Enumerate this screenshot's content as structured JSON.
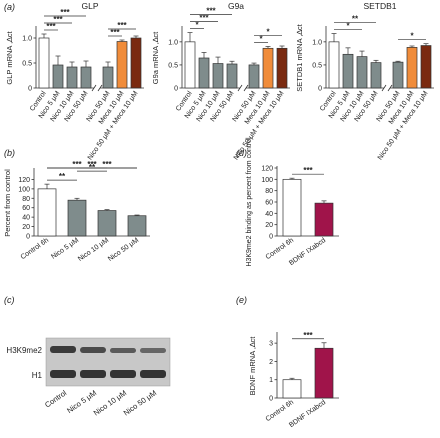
{
  "panels": {
    "a": {
      "letter": "(a)",
      "charts": [
        {
          "type": "bar",
          "title": "GLP",
          "ylabel": "GLP mRNA ,∆ct",
          "ylim": [
            0,
            1.2
          ],
          "yticks": [
            "0",
            "0.5",
            "1.0"
          ],
          "categories": [
            "Control",
            "Nico 5 μM",
            "Nico 10 μM",
            "Nico 50 μM",
            "Nico 50 μM",
            "Meca 10 μM",
            "Nico 50 μM + Meca 10 μM"
          ],
          "values": [
            1.0,
            0.46,
            0.42,
            0.42,
            0.42,
            0.93,
            1.0
          ],
          "errors": [
            0.08,
            0.18,
            0.1,
            0.12,
            0.1,
            0.03,
            0.04
          ],
          "fills": [
            "#ffffff",
            "#7f8c8c",
            "#7f8c8c",
            "#7f8c8c",
            "#7f8c8c",
            "#f08c3a",
            "#7a2a10"
          ],
          "break_after": 3,
          "sig": [
            {
              "from": 0,
              "to": 1,
              "label": "***"
            },
            {
              "from": 0,
              "to": 2,
              "label": "***"
            },
            {
              "from": 0,
              "to": 3,
              "label": "***"
            },
            {
              "from": 4,
              "to": 5,
              "label": "***"
            },
            {
              "from": 4,
              "to": 6,
              "label": "***"
            }
          ]
        },
        {
          "type": "bar",
          "title": "G9a",
          "ylabel": "G9a mRNA ,∆ct",
          "ylim": [
            0,
            1.3
          ],
          "yticks": [
            "0",
            "0.5",
            "1.0"
          ],
          "categories": [
            "Control",
            "Nico 5 μM",
            "Nico 10 μM",
            "Nico 50 μM",
            "Nico 50 μM",
            "Meca 10 μM",
            "Nico 50 μM + Meca 10 μM"
          ],
          "values": [
            1.0,
            0.65,
            0.53,
            0.52,
            0.5,
            0.86,
            0.86
          ],
          "errors": [
            0.2,
            0.12,
            0.14,
            0.06,
            0.04,
            0.04,
            0.05
          ],
          "fills": [
            "#ffffff",
            "#7f8c8c",
            "#7f8c8c",
            "#7f8c8c",
            "#7f8c8c",
            "#f08c3a",
            "#7a2a10"
          ],
          "break_after": 3,
          "sig": [
            {
              "from": 0,
              "to": 1,
              "label": "*"
            },
            {
              "from": 0,
              "to": 2,
              "label": "***"
            },
            {
              "from": 0,
              "to": 3,
              "label": "***"
            },
            {
              "from": 4,
              "to": 5,
              "label": "*"
            },
            {
              "from": 4,
              "to": 6,
              "label": "*"
            }
          ]
        },
        {
          "type": "bar",
          "title": "SETDB1",
          "ylabel": "SETDB1 mRNA ,∆ct",
          "ylim": [
            0,
            1.3
          ],
          "yticks": [
            "0",
            "0.5",
            "1.0"
          ],
          "categories": [
            "Control",
            "Nico 5 μM",
            "Nico 10 μM",
            "Nico 50 μM",
            "Nico 50 μM",
            "Meca 10 μM",
            "Nico 50 μM + Meca 10 μM"
          ],
          "values": [
            1.0,
            0.73,
            0.68,
            0.55,
            0.56,
            0.88,
            0.92
          ],
          "errors": [
            0.18,
            0.14,
            0.12,
            0.05,
            0.02,
            0.03,
            0.04
          ],
          "fills": [
            "#ffffff",
            "#7f8c8c",
            "#7f8c8c",
            "#7f8c8c",
            "#7f8c8c",
            "#f08c3a",
            "#7a2a10"
          ],
          "break_after": 3,
          "sig": [
            {
              "from": 0,
              "to": 2,
              "label": "*"
            },
            {
              "from": 0,
              "to": 3,
              "label": "**"
            },
            {
              "from": 4,
              "to": 6,
              "label": "*"
            }
          ]
        }
      ]
    },
    "b": {
      "letter": "(b)",
      "chart": {
        "type": "bar",
        "ylabel": "Percent from control",
        "ylim": [
          0,
          140
        ],
        "yticks": [
          "0",
          "20",
          "40",
          "60",
          "80",
          "100",
          "120"
        ],
        "categories": [
          "Control 6h",
          "Nico 5 μM",
          "Nico 10 μM",
          "Nico 50 μM"
        ],
        "values": [
          100,
          76,
          54,
          43
        ],
        "errors": [
          10,
          4,
          2,
          1.5
        ],
        "fills": [
          "#ffffff",
          "#7f8c8c",
          "#7f8c8c",
          "#7f8c8c"
        ],
        "sig": [
          {
            "from": 0,
            "to": 1,
            "label": "**"
          },
          {
            "from": 1,
            "to": 2,
            "label": "**"
          },
          {
            "from": 0,
            "to": 2,
            "label": "***"
          },
          {
            "from": 1,
            "to": 3,
            "label": "***"
          },
          {
            "from": 0,
            "to": 3,
            "label": "***"
          }
        ]
      }
    },
    "c": {
      "letter": "(c)",
      "blot_labels": [
        "H3K9me2",
        "H1"
      ],
      "lanes": [
        "Control",
        "Nico 5 μM",
        "Nico 10 μM",
        "Nico 50 μM"
      ]
    },
    "d": {
      "letter": "(d)",
      "chart": {
        "type": "bar",
        "ylabel": "H3K9me2 binding as percent from control",
        "ylim": [
          0,
          120
        ],
        "yticks": [
          "0",
          "20",
          "40",
          "60",
          "80",
          "100",
          "120"
        ],
        "categories": [
          "Control 6h",
          "BDNF IXabcd"
        ],
        "values": [
          100,
          58
        ],
        "errors": [
          2,
          4
        ],
        "fills": [
          "#ffffff",
          "#a0144a"
        ],
        "sig": [
          {
            "from": 0,
            "to": 1,
            "label": "***"
          }
        ]
      }
    },
    "e": {
      "letter": "(e)",
      "chart": {
        "type": "bar",
        "ylabel": "BDNF mRNA ,∆ct",
        "ylim": [
          0,
          3.5
        ],
        "yticks": [
          "0",
          "1",
          "2",
          "3"
        ],
        "categories": [
          "Control 6h",
          "BDNF IXabcd"
        ],
        "values": [
          1.0,
          2.72
        ],
        "errors": [
          0.08,
          0.3
        ],
        "fills": [
          "#ffffff",
          "#a0144a"
        ],
        "sig": [
          {
            "from": 0,
            "to": 1,
            "label": "***"
          }
        ]
      }
    }
  }
}
